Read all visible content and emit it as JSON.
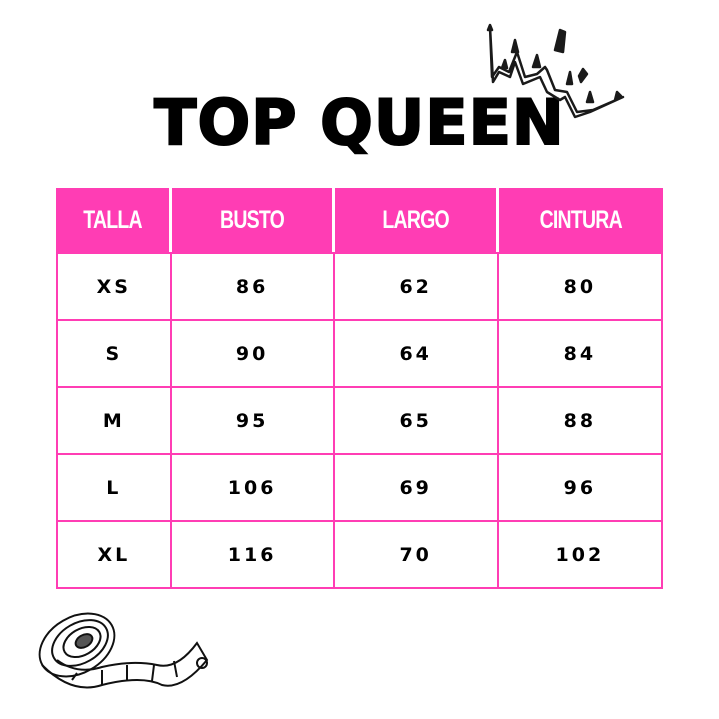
{
  "title": "TOP QUEEN",
  "colors": {
    "accent": "#ff3db4",
    "text": "#000000"
  },
  "icons": {
    "crown": "crown-icon",
    "tape": "measuring-tape-icon"
  },
  "table": {
    "headers": [
      "TALLA",
      "BUSTO",
      "LARGO",
      "CINTURA"
    ],
    "rows": [
      [
        "XS",
        "86",
        "62",
        "80"
      ],
      [
        "S",
        "90",
        "64",
        "84"
      ],
      [
        "M",
        "95",
        "65",
        "88"
      ],
      [
        "L",
        "106",
        "69",
        "96"
      ],
      [
        "XL",
        "116",
        "70",
        "102"
      ]
    ]
  }
}
